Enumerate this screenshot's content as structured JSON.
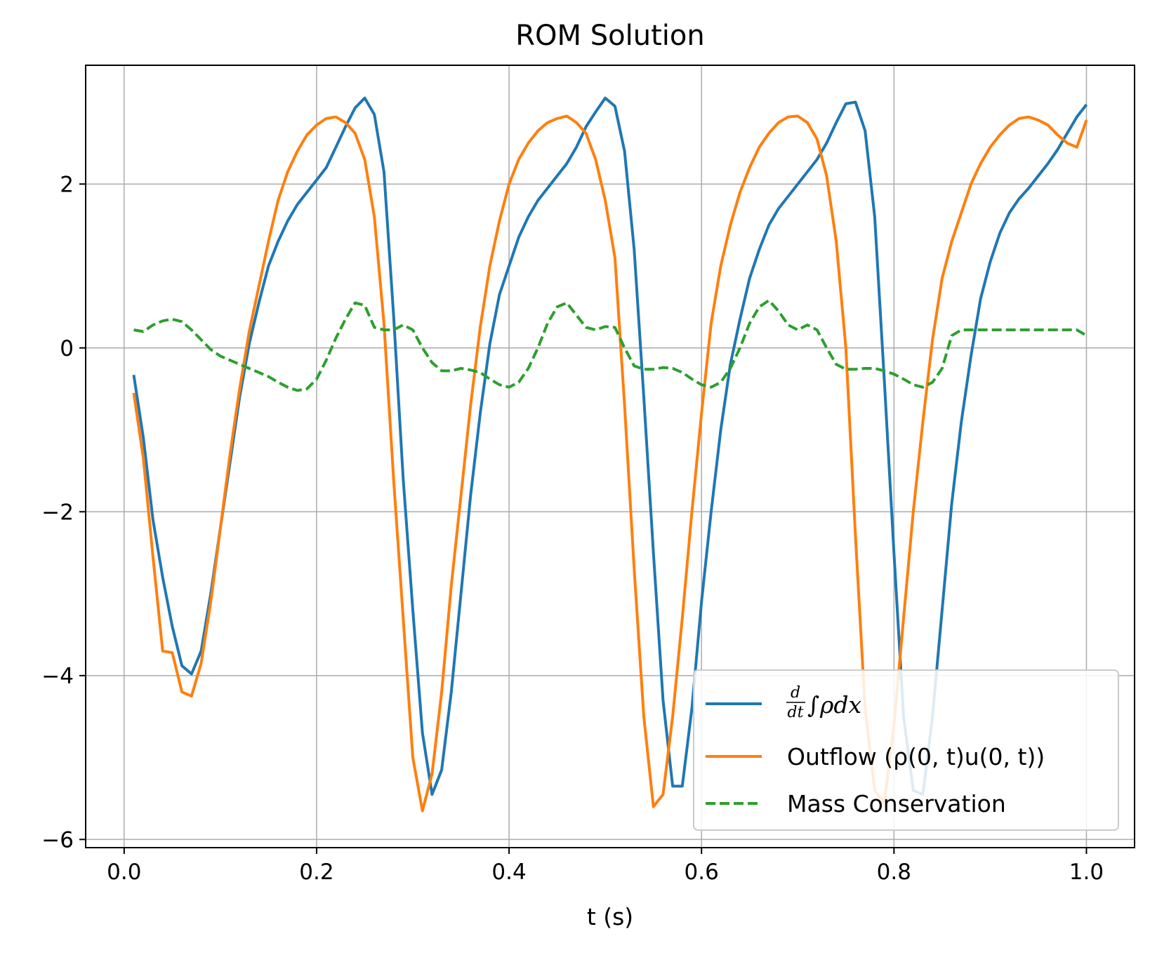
{
  "chart_data": {
    "type": "line",
    "title": "ROM Solution",
    "xlabel": "t (s)",
    "ylabel": "",
    "xlim": [
      -0.04,
      1.05
    ],
    "ylim": [
      -6.1,
      3.45
    ],
    "xticks": [
      0.0,
      0.2,
      0.4,
      0.6,
      0.8,
      1.0
    ],
    "xtick_labels": [
      "0.0",
      "0.2",
      "0.4",
      "0.6",
      "0.8",
      "1.0"
    ],
    "yticks": [
      -6,
      -4,
      -2,
      0,
      2
    ],
    "ytick_labels": [
      "−6",
      "−4",
      "−2",
      "0",
      "2"
    ],
    "grid": true,
    "legend_position": "lower-right",
    "series": [
      {
        "name": "d/dt ∫ρdx",
        "color": "#1f77b4",
        "style": "solid",
        "x": [
          0.01,
          0.02,
          0.03,
          0.04,
          0.05,
          0.06,
          0.07,
          0.08,
          0.09,
          0.1,
          0.11,
          0.12,
          0.13,
          0.14,
          0.15,
          0.16,
          0.17,
          0.18,
          0.19,
          0.2,
          0.21,
          0.22,
          0.23,
          0.24,
          0.25,
          0.26,
          0.27,
          0.28,
          0.29,
          0.3,
          0.31,
          0.32,
          0.33,
          0.34,
          0.35,
          0.36,
          0.37,
          0.38,
          0.39,
          0.4,
          0.41,
          0.42,
          0.43,
          0.44,
          0.45,
          0.46,
          0.47,
          0.48,
          0.49,
          0.5,
          0.51,
          0.52,
          0.53,
          0.54,
          0.55,
          0.56,
          0.57,
          0.58,
          0.59,
          0.6,
          0.61,
          0.62,
          0.63,
          0.64,
          0.65,
          0.66,
          0.67,
          0.68,
          0.69,
          0.7,
          0.71,
          0.72,
          0.73,
          0.74,
          0.75,
          0.76,
          0.77,
          0.78,
          0.79,
          0.8,
          0.81,
          0.82,
          0.83,
          0.84,
          0.85,
          0.86,
          0.87,
          0.88,
          0.89,
          0.9,
          0.91,
          0.92,
          0.93,
          0.94,
          0.95,
          0.96,
          0.97,
          0.98,
          0.99,
          1.0
        ],
        "y": [
          -0.33,
          -1.1,
          -2.1,
          -2.8,
          -3.4,
          -3.88,
          -3.98,
          -3.7,
          -3.0,
          -2.2,
          -1.4,
          -0.6,
          0.05,
          0.55,
          1.0,
          1.3,
          1.55,
          1.75,
          1.9,
          2.05,
          2.2,
          2.45,
          2.7,
          2.93,
          3.05,
          2.85,
          2.15,
          0.4,
          -1.6,
          -3.2,
          -4.7,
          -5.45,
          -5.15,
          -4.2,
          -3.0,
          -1.8,
          -0.8,
          0.05,
          0.65,
          1.0,
          1.35,
          1.6,
          1.8,
          1.95,
          2.1,
          2.25,
          2.45,
          2.7,
          2.88,
          3.05,
          2.95,
          2.4,
          1.2,
          -0.6,
          -2.5,
          -4.3,
          -5.35,
          -5.35,
          -4.4,
          -3.1,
          -2.0,
          -1.0,
          -0.2,
          0.35,
          0.85,
          1.2,
          1.5,
          1.7,
          1.85,
          2.0,
          2.15,
          2.3,
          2.5,
          2.75,
          2.98,
          3.0,
          2.65,
          1.6,
          -0.4,
          -2.5,
          -4.5,
          -5.4,
          -5.45,
          -4.5,
          -3.2,
          -1.9,
          -0.9,
          -0.1,
          0.6,
          1.05,
          1.4,
          1.65,
          1.82,
          1.95,
          2.1,
          2.25,
          2.42,
          2.62,
          2.82,
          2.97
        ]
      },
      {
        "name": "Outflow (ρ(0, t)u(0, t))",
        "color": "#ff7f0e",
        "style": "solid",
        "x": [
          0.01,
          0.02,
          0.03,
          0.04,
          0.05,
          0.06,
          0.07,
          0.08,
          0.09,
          0.1,
          0.11,
          0.12,
          0.13,
          0.14,
          0.15,
          0.16,
          0.17,
          0.18,
          0.19,
          0.2,
          0.21,
          0.22,
          0.23,
          0.24,
          0.25,
          0.26,
          0.27,
          0.28,
          0.29,
          0.3,
          0.31,
          0.32,
          0.33,
          0.34,
          0.35,
          0.36,
          0.37,
          0.38,
          0.39,
          0.4,
          0.41,
          0.42,
          0.43,
          0.44,
          0.45,
          0.46,
          0.47,
          0.48,
          0.49,
          0.5,
          0.51,
          0.52,
          0.53,
          0.54,
          0.55,
          0.56,
          0.57,
          0.58,
          0.59,
          0.6,
          0.61,
          0.62,
          0.63,
          0.64,
          0.65,
          0.66,
          0.67,
          0.68,
          0.69,
          0.7,
          0.71,
          0.72,
          0.73,
          0.74,
          0.75,
          0.76,
          0.77,
          0.78,
          0.79,
          0.8,
          0.81,
          0.82,
          0.83,
          0.84,
          0.85,
          0.86,
          0.87,
          0.88,
          0.89,
          0.9,
          0.91,
          0.92,
          0.93,
          0.94,
          0.95,
          0.96,
          0.97,
          0.98,
          0.99,
          1.0
        ],
        "y": [
          -0.55,
          -1.35,
          -2.55,
          -3.7,
          -3.72,
          -4.2,
          -4.25,
          -3.85,
          -3.1,
          -2.2,
          -1.3,
          -0.5,
          0.2,
          0.75,
          1.3,
          1.8,
          2.15,
          2.4,
          2.6,
          2.72,
          2.8,
          2.82,
          2.75,
          2.62,
          2.3,
          1.6,
          0.3,
          -1.6,
          -3.3,
          -5.0,
          -5.65,
          -5.2,
          -4.2,
          -2.9,
          -1.8,
          -0.7,
          0.25,
          1.0,
          1.55,
          2.0,
          2.3,
          2.5,
          2.65,
          2.75,
          2.8,
          2.83,
          2.75,
          2.62,
          2.3,
          1.8,
          1.1,
          -0.7,
          -2.7,
          -4.5,
          -5.6,
          -5.45,
          -4.5,
          -3.3,
          -2.0,
          -0.8,
          0.3,
          1.0,
          1.5,
          1.9,
          2.2,
          2.45,
          2.62,
          2.75,
          2.82,
          2.83,
          2.75,
          2.55,
          2.1,
          1.3,
          0.0,
          -2.3,
          -4.4,
          -5.4,
          -5.55,
          -4.6,
          -3.3,
          -2.0,
          -0.9,
          0.1,
          0.85,
          1.3,
          1.65,
          2.0,
          2.25,
          2.45,
          2.6,
          2.72,
          2.8,
          2.82,
          2.78,
          2.72,
          2.6,
          2.5,
          2.45,
          2.78
        ]
      },
      {
        "name": "Mass Conservation",
        "color": "#2ca02c",
        "style": "dashed",
        "x": [
          0.01,
          0.02,
          0.03,
          0.04,
          0.05,
          0.06,
          0.07,
          0.08,
          0.09,
          0.1,
          0.11,
          0.12,
          0.13,
          0.14,
          0.15,
          0.16,
          0.17,
          0.18,
          0.19,
          0.2,
          0.21,
          0.22,
          0.23,
          0.24,
          0.25,
          0.26,
          0.27,
          0.28,
          0.29,
          0.3,
          0.31,
          0.32,
          0.33,
          0.34,
          0.35,
          0.36,
          0.37,
          0.38,
          0.39,
          0.4,
          0.41,
          0.42,
          0.43,
          0.44,
          0.45,
          0.46,
          0.47,
          0.48,
          0.49,
          0.5,
          0.51,
          0.52,
          0.53,
          0.54,
          0.55,
          0.56,
          0.57,
          0.58,
          0.59,
          0.6,
          0.61,
          0.62,
          0.63,
          0.64,
          0.65,
          0.66,
          0.67,
          0.68,
          0.69,
          0.7,
          0.71,
          0.72,
          0.73,
          0.74,
          0.75,
          0.76,
          0.77,
          0.78,
          0.79,
          0.8,
          0.81,
          0.82,
          0.83,
          0.84,
          0.85,
          0.86,
          0.87,
          0.88,
          0.89,
          0.9,
          0.91,
          0.92,
          0.93,
          0.94,
          0.95,
          0.96,
          0.97,
          0.98,
          0.99,
          1.0
        ],
        "y": [
          0.22,
          0.2,
          0.28,
          0.33,
          0.35,
          0.32,
          0.22,
          0.1,
          -0.02,
          -0.1,
          -0.15,
          -0.2,
          -0.25,
          -0.3,
          -0.35,
          -0.42,
          -0.48,
          -0.52,
          -0.5,
          -0.38,
          -0.15,
          0.12,
          0.35,
          0.55,
          0.52,
          0.25,
          0.22,
          0.22,
          0.28,
          0.22,
          0.0,
          -0.18,
          -0.28,
          -0.28,
          -0.25,
          -0.27,
          -0.3,
          -0.38,
          -0.45,
          -0.48,
          -0.42,
          -0.25,
          0.0,
          0.3,
          0.5,
          0.55,
          0.4,
          0.25,
          0.22,
          0.26,
          0.25,
          0.0,
          -0.22,
          -0.26,
          -0.26,
          -0.24,
          -0.25,
          -0.3,
          -0.38,
          -0.45,
          -0.48,
          -0.42,
          -0.25,
          0.0,
          0.3,
          0.5,
          0.58,
          0.45,
          0.28,
          0.22,
          0.28,
          0.22,
          0.0,
          -0.2,
          -0.26,
          -0.26,
          -0.25,
          -0.25,
          -0.28,
          -0.32,
          -0.38,
          -0.45,
          -0.48,
          -0.42,
          -0.25,
          0.15,
          0.22,
          0.22,
          0.22,
          0.22,
          0.22,
          0.22,
          0.22,
          0.22,
          0.22,
          0.22,
          0.22,
          0.22,
          0.22,
          0.15
        ]
      }
    ]
  },
  "legend": {
    "entry1_label": "ρdx",
    "entry1_frac_num": "d",
    "entry1_frac_den": "dt",
    "entry1_integral": "∫",
    "entry2_label": "Outflow (ρ(0, t)u(0, t))",
    "entry3_label": "Mass Conservation"
  }
}
